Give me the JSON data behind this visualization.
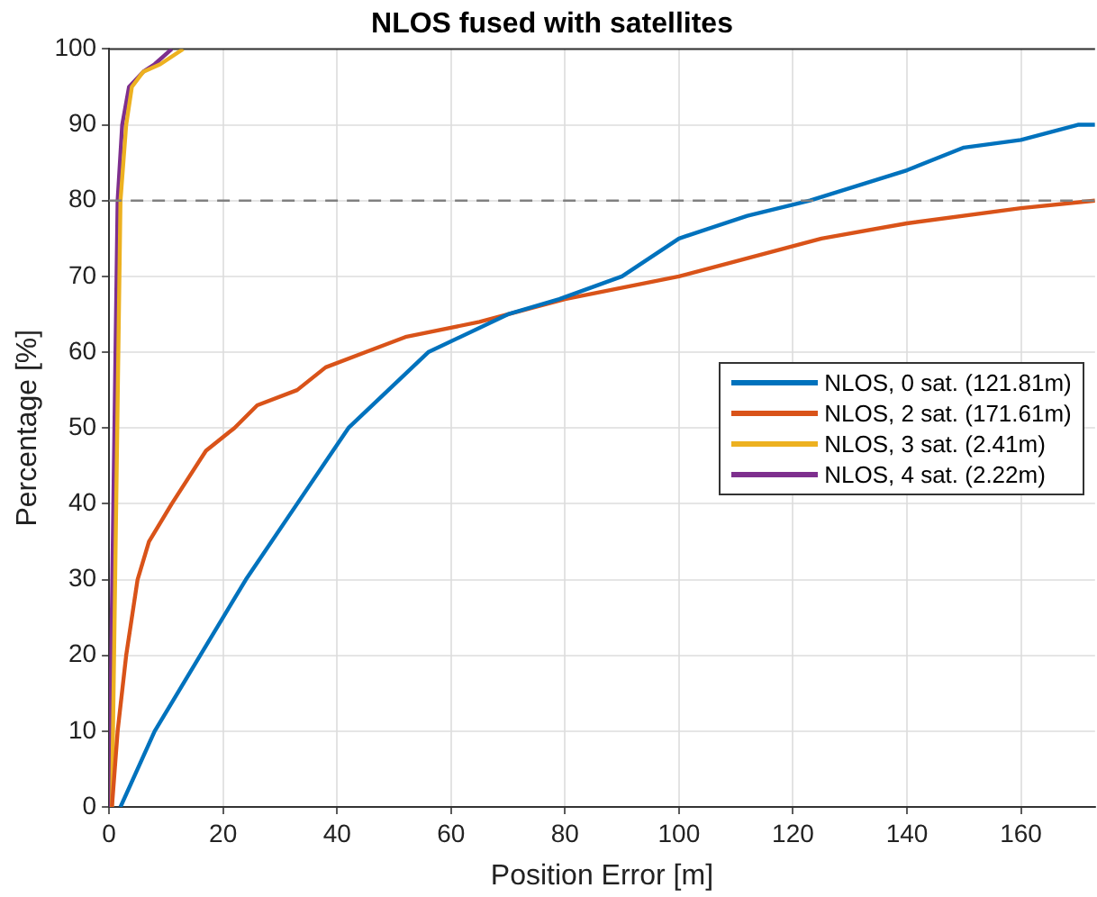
{
  "chart_data": {
    "type": "line",
    "title": "NLOS fused with satellites",
    "xlabel": "Position Error [m]",
    "ylabel": "Percentage [%]",
    "xlim": [
      0,
      173
    ],
    "xticks": [
      0,
      20,
      40,
      60,
      80,
      100,
      120,
      140,
      160
    ],
    "ylim": [
      0,
      100
    ],
    "yticks": [
      0,
      10,
      20,
      30,
      40,
      50,
      60,
      70,
      80,
      90,
      100
    ],
    "grid": true,
    "legend": "right",
    "line_style": "solid",
    "marker": "none",
    "ref_lines": [
      {
        "axis": "y",
        "value": 80,
        "color": "#808080",
        "line_style": "dashed"
      }
    ],
    "series": [
      {
        "name": "NLOS, 0 sat. (121.81m)",
        "color": "#0072bd",
        "x": [
          2,
          8,
          16,
          24,
          33,
          42,
          56,
          70,
          79,
          90,
          100,
          112,
          123,
          140,
          150,
          160,
          170,
          173
        ],
        "values": [
          0,
          10,
          20,
          30,
          40,
          50,
          60,
          65,
          67,
          70,
          75,
          78,
          80,
          84,
          87,
          88,
          90,
          90
        ]
      },
      {
        "name": "NLOS, 2 sat. (171.61m)",
        "color": "#d95319",
        "x": [
          0.5,
          1.5,
          3,
          5,
          7,
          11,
          17,
          22,
          26,
          33,
          38,
          45,
          52,
          65,
          80,
          100,
          110,
          125,
          140,
          160,
          173
        ],
        "values": [
          0,
          10,
          20,
          30,
          35,
          40,
          47,
          50,
          53,
          55,
          58,
          60,
          62,
          64,
          67,
          70,
          72,
          75,
          77,
          79,
          80
        ]
      },
      {
        "name": "NLOS, 3 sat. (2.41m)",
        "color": "#edb120",
        "x": [
          0.5,
          2,
          3,
          4,
          6,
          9,
          13
        ],
        "values": [
          0,
          80,
          90,
          95,
          97,
          98,
          100
        ]
      },
      {
        "name": "NLOS, 4 sat. (2.22m)",
        "color": "#7e2f8e",
        "x": [
          0,
          1.5,
          2.3,
          3.5,
          6,
          8,
          11
        ],
        "values": [
          0,
          80,
          90,
          95,
          97,
          98,
          100
        ]
      }
    ]
  }
}
